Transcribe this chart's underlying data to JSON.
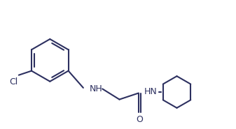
{
  "line_color": "#2d3060",
  "background_color": "#ffffff",
  "line_width": 1.5,
  "font_size": 9,
  "label_color": "#2d3060",
  "figsize": [
    3.37,
    1.85
  ],
  "dpi": 100,
  "Cl_label": "Cl",
  "NH_label": "NH",
  "NH2_label": "HN",
  "O_label": "O"
}
